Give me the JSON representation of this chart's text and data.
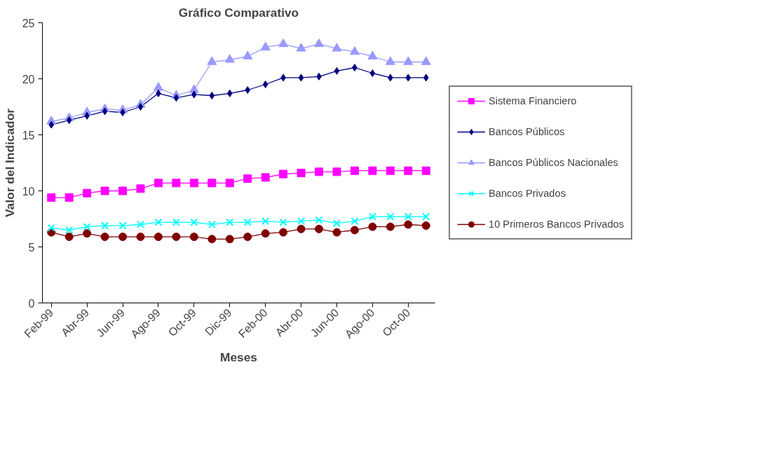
{
  "chart_data": {
    "type": "line",
    "title": "Gráfico Comparativo",
    "xlabel": "Meses",
    "ylabel": "Valor del Indicador",
    "categories": [
      "Feb-99",
      null,
      "Abr-99",
      null,
      "Jun-99",
      null,
      "Ago-99",
      null,
      "Oct-99",
      null,
      "Dic-99",
      null,
      "Feb-00",
      null,
      "Abr-00",
      null,
      "Jun-00",
      null,
      "Ago-00",
      null,
      "Oct-00",
      null
    ],
    "series": [
      {
        "name": "Sistema Financiero",
        "color": "#ff00ff",
        "marker": "square",
        "values": [
          9.4,
          9.4,
          9.8,
          10.0,
          10.0,
          10.2,
          10.7,
          10.7,
          10.7,
          10.7,
          10.7,
          11.1,
          11.2,
          11.5,
          11.6,
          11.7,
          11.7,
          11.8,
          11.8,
          11.8,
          11.8,
          11.8
        ]
      },
      {
        "name": "Bancos Públicos",
        "color": "#000080",
        "marker": "diamond",
        "values": [
          15.9,
          16.3,
          16.7,
          17.1,
          17.0,
          17.5,
          18.7,
          18.3,
          18.6,
          18.5,
          18.7,
          19.0,
          19.5,
          20.1,
          20.1,
          20.2,
          20.7,
          21.0,
          20.5,
          20.1,
          20.1,
          20.1
        ]
      },
      {
        "name": "Bancos Públicos Nacionales",
        "color": "#9999ff",
        "marker": "triangle",
        "values": [
          16.2,
          16.5,
          17.0,
          17.3,
          17.2,
          17.7,
          19.2,
          18.5,
          19.0,
          21.5,
          21.7,
          22.0,
          22.8,
          23.1,
          22.7,
          23.1,
          22.7,
          22.4,
          22.0,
          21.5,
          21.5,
          21.5
        ]
      },
      {
        "name": "Bancos Privados",
        "color": "#00ffff",
        "marker": "cross",
        "values": [
          6.7,
          6.5,
          6.8,
          6.9,
          6.9,
          7.0,
          7.2,
          7.2,
          7.2,
          7.0,
          7.2,
          7.2,
          7.3,
          7.2,
          7.3,
          7.4,
          7.1,
          7.3,
          7.7,
          7.7,
          7.7,
          7.7
        ]
      },
      {
        "name": "10 Primeros Bancos Privados",
        "color": "#800000",
        "marker": "circle",
        "values": [
          6.3,
          5.9,
          6.2,
          5.9,
          5.9,
          5.9,
          5.9,
          5.9,
          5.9,
          5.7,
          5.7,
          5.9,
          6.2,
          6.3,
          6.6,
          6.6,
          6.3,
          6.5,
          6.8,
          6.8,
          7.0,
          6.9
        ]
      }
    ],
    "ylim": [
      0,
      25
    ],
    "yticks": [
      0,
      5,
      10,
      15,
      20,
      25
    ],
    "grid": false,
    "legend": "right",
    "line_style": "solid"
  }
}
